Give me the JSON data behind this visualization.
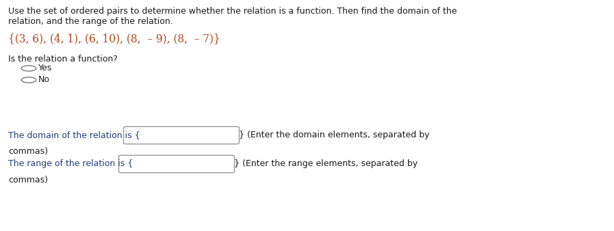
{
  "bg_color": "#ffffff",
  "text_color_dark": "#2d2d2d",
  "text_color_red": "#b5451b",
  "text_color_navy": "#1f3d7a",
  "text_color_black": "#1a1a1a",
  "instruction_line1": "Use the set of ordered pairs to determine whether the relation is a function. Then find the domain of the",
  "instruction_line2": "relation, and the range of the relation.",
  "math_expr": "{(3, 6), (4, 1), (6, 10), (8,  – 9), (8,  – 7)}",
  "question": "Is the relation a function?",
  "option_yes": "Yes",
  "option_no": "No",
  "domain_label": "The domain of the relation is {",
  "domain_suffix": "} (Enter the domain elements, separated by",
  "domain_line2": "commas)",
  "range_label": "The range of the relation is {",
  "range_suffix": "} (Enter the range elements, separated by",
  "range_line2": "commas)",
  "figsize": [
    8.97,
    3.38
  ],
  "dpi": 100
}
